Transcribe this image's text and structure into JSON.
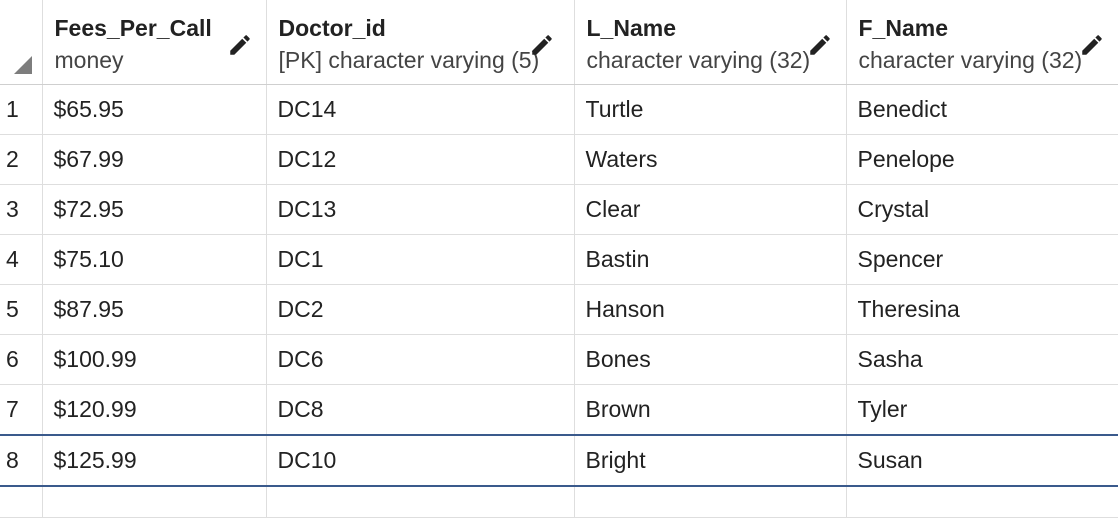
{
  "columns": [
    {
      "name": "Fees_Per_Call",
      "type": "money",
      "edit_icon": "pencil-icon"
    },
    {
      "name": "Doctor_id",
      "type": "[PK] character varying (5)",
      "edit_icon": "pencil-icon"
    },
    {
      "name": "L_Name",
      "type": "character varying (32)",
      "edit_icon": "pencil-icon"
    },
    {
      "name": "F_Name",
      "type": "character varying (32)",
      "edit_icon": "pencil-icon"
    }
  ],
  "rows": [
    {
      "num": "1",
      "cells": [
        "$65.95",
        "DC14",
        "Turtle",
        "Benedict"
      ]
    },
    {
      "num": "2",
      "cells": [
        "$67.99",
        "DC12",
        "Waters",
        "Penelope"
      ]
    },
    {
      "num": "3",
      "cells": [
        "$72.95",
        "DC13",
        "Clear",
        "Crystal"
      ]
    },
    {
      "num": "4",
      "cells": [
        "$75.10",
        "DC1",
        "Bastin",
        "Spencer"
      ]
    },
    {
      "num": "5",
      "cells": [
        "$87.95",
        "DC2",
        "Hanson",
        "Theresina"
      ]
    },
    {
      "num": "6",
      "cells": [
        "$100.99",
        "DC6",
        "Bones",
        "Sasha"
      ]
    },
    {
      "num": "7",
      "cells": [
        "$120.99",
        "DC8",
        "Brown",
        "Tyler"
      ]
    },
    {
      "num": "8",
      "cells": [
        "$125.99",
        "DC10",
        "Bright",
        "Susan"
      ]
    }
  ],
  "selected_row": "8",
  "colors": {
    "accent": "#326690",
    "selection_border": "#3a5a8c",
    "grid_line": "#dedede"
  }
}
